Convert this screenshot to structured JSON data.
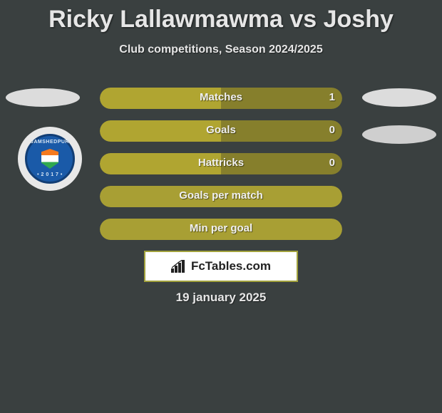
{
  "title": "Ricky Lallawmawma vs Joshy",
  "subtitle": "Club competitions, Season 2024/2025",
  "date": "19 january 2025",
  "brand": {
    "name": "FcTables.com"
  },
  "crest": {
    "top_text": "JAMSHEDPUR",
    "bottom_text": "• 2 0 1 7 •"
  },
  "colors": {
    "left_bar": "#b0a531",
    "right_bar": "#867f2c",
    "left_full": "#a89f34",
    "background": "#3a4040",
    "row_border": "#a2a23d"
  },
  "rows": [
    {
      "label": "Matches",
      "left": "",
      "right": "1",
      "left_pct": 50,
      "right_pct": 50,
      "left_color": "#b0a531",
      "right_color": "#867f2c"
    },
    {
      "label": "Goals",
      "left": "",
      "right": "0",
      "left_pct": 50,
      "right_pct": 50,
      "left_color": "#b0a531",
      "right_color": "#867f2c"
    },
    {
      "label": "Hattricks",
      "left": "",
      "right": "0",
      "left_pct": 50,
      "right_pct": 50,
      "left_color": "#b0a531",
      "right_color": "#867f2c"
    },
    {
      "label": "Goals per match",
      "left": "",
      "right": "",
      "left_pct": 100,
      "right_pct": 0,
      "left_color": "#a89f34",
      "right_color": "#867f2c"
    },
    {
      "label": "Min per goal",
      "left": "",
      "right": "",
      "left_pct": 100,
      "right_pct": 0,
      "left_color": "#a89f34",
      "right_color": "#867f2c"
    }
  ]
}
